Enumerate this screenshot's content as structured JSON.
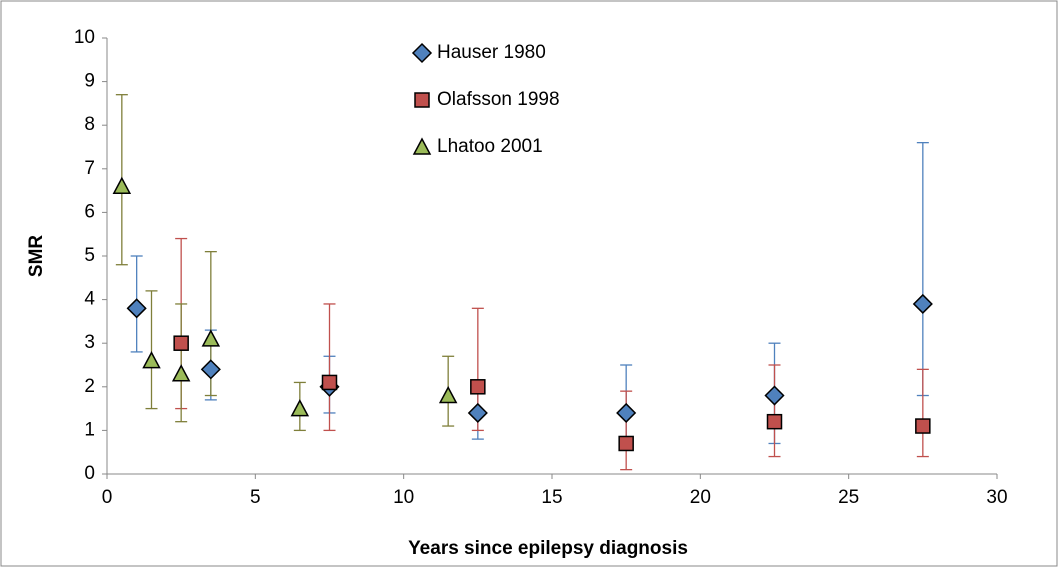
{
  "chart_data": {
    "type": "errorbar-scatter",
    "x_label": "Years since epilepsy diagnosis",
    "y_label": "SMR",
    "xlim": [
      0,
      30
    ],
    "xticks": [
      0,
      5,
      10,
      15,
      20,
      25,
      30
    ],
    "ylim": [
      0,
      10
    ],
    "yticks": [
      0,
      1,
      2,
      3,
      4,
      5,
      6,
      7,
      8,
      9,
      10
    ],
    "grid": false,
    "legend": "top",
    "series": [
      {
        "name": "Hauser 1980",
        "color": "#4f81bd",
        "error_color": "#4f81bd",
        "marker": "diamond",
        "x": [
          1,
          3.5,
          7.5,
          12.5,
          17.5,
          22.5,
          27.5
        ],
        "values": [
          3.8,
          2.4,
          2.0,
          1.4,
          1.4,
          1.8,
          3.9
        ],
        "lower": [
          2.8,
          1.7,
          1.4,
          0.8,
          0.8,
          0.7,
          1.8
        ],
        "upper": [
          5.0,
          3.3,
          2.7,
          2.1,
          2.5,
          3.0,
          7.6
        ]
      },
      {
        "name": "Olafsson 1998",
        "color": "#c0504d",
        "error_color": "#c0504d",
        "marker": "square",
        "x": [
          2.5,
          7.5,
          12.5,
          17.5,
          22.5,
          27.5
        ],
        "values": [
          3.0,
          2.1,
          2.0,
          0.7,
          1.2,
          1.1
        ],
        "lower": [
          1.5,
          1.0,
          1.0,
          0.1,
          0.4,
          0.4
        ],
        "upper": [
          5.4,
          3.9,
          3.8,
          1.9,
          2.5,
          2.4
        ]
      },
      {
        "name": "Lhatoo 2001",
        "color": "#9bbb59",
        "error_color": "#7f7f3a",
        "marker": "triangle",
        "x": [
          0.5,
          1.5,
          2.5,
          3.5,
          6.5,
          11.5
        ],
        "values": [
          6.6,
          2.6,
          2.3,
          3.1,
          1.5,
          1.8
        ],
        "lower": [
          4.8,
          1.5,
          1.2,
          1.8,
          1.0,
          1.1
        ],
        "upper": [
          8.7,
          4.2,
          3.9,
          5.1,
          2.1,
          2.7
        ]
      }
    ]
  }
}
